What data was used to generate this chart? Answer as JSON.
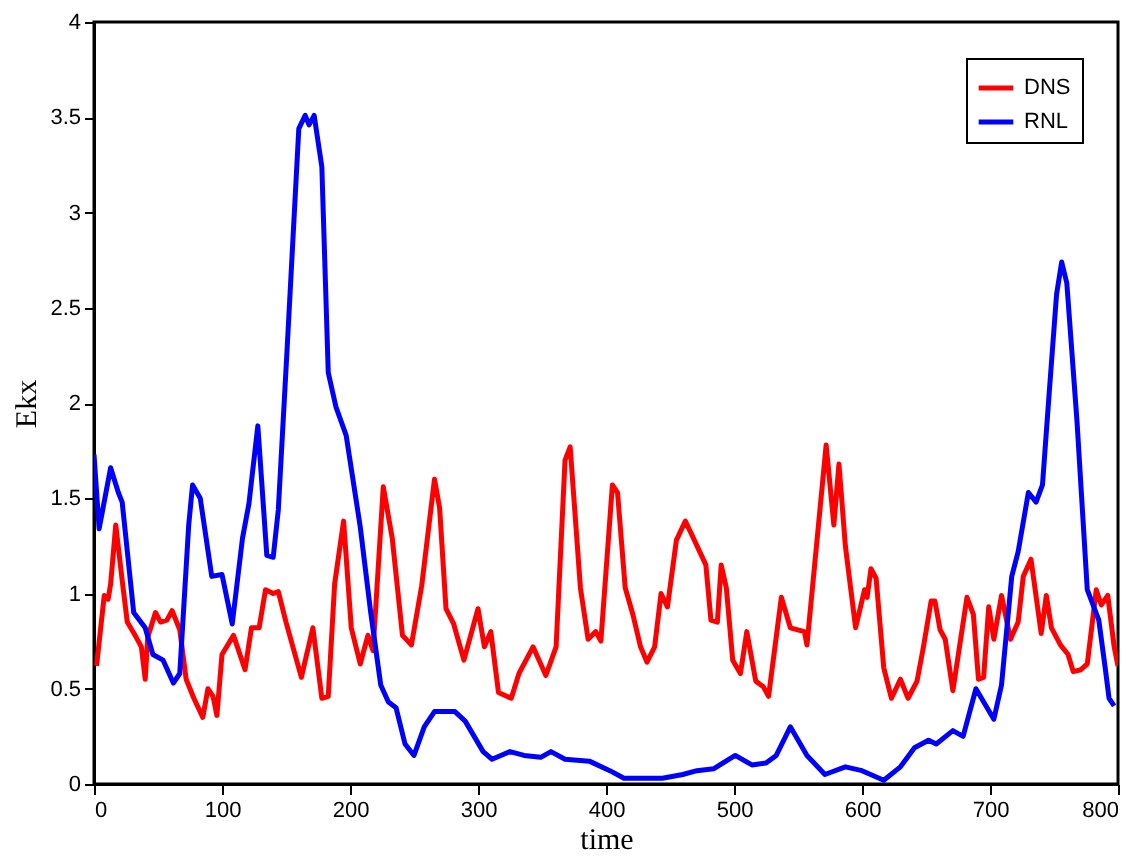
{
  "chart_data": {
    "type": "line",
    "xlabel": "time",
    "ylabel": "Ekx",
    "xlim": [
      0,
      800
    ],
    "ylim": [
      0,
      4
    ],
    "xticks": [
      0,
      100,
      200,
      300,
      400,
      500,
      600,
      700,
      800
    ],
    "yticks": [
      0,
      0.5,
      1,
      1.5,
      2,
      2.5,
      3,
      3.5,
      4
    ],
    "grid": false,
    "legend": "top right",
    "marker": "none",
    "line_style": "solid",
    "series": [
      {
        "name": "DNS",
        "color": "#ff0000",
        "x": [
          2,
          8,
          11,
          13,
          17,
          22,
          26,
          33,
          37,
          40,
          42,
          48,
          52,
          57,
          61,
          67,
          72,
          78,
          85,
          89,
          93,
          96,
          100,
          109,
          118,
          123,
          129,
          134,
          140,
          144,
          150,
          162,
          171,
          178,
          183,
          188,
          195,
          201,
          208,
          214,
          218,
          226,
          233,
          241,
          248,
          256,
          266,
          270,
          275,
          281,
          289,
          300,
          305,
          310,
          316,
          326,
          332,
          343,
          353,
          361,
          368,
          372,
          380,
          386,
          392,
          396,
          405,
          409,
          415,
          421,
          427,
          432,
          438,
          443,
          448,
          455,
          462,
          469,
          478,
          482,
          487,
          490,
          494,
          499,
          505,
          510,
          517,
          523,
          527,
          537,
          544,
          555,
          557,
          563,
          572,
          578,
          582,
          587,
          595,
          602,
          604,
          607,
          611,
          617,
          623,
          630,
          636,
          643,
          648,
          654,
          657,
          661,
          665,
          671,
          682,
          687,
          691,
          695,
          699,
          703,
          709,
          716,
          722,
          726,
          732,
          740,
          744,
          748,
          755,
          761,
          765,
          771,
          776,
          783,
          787,
          792,
          797,
          800
        ],
        "values": [
          0.62,
          0.99,
          0.97,
          1.05,
          1.36,
          1.07,
          0.85,
          0.77,
          0.72,
          0.55,
          0.77,
          0.9,
          0.85,
          0.86,
          0.91,
          0.81,
          0.55,
          0.45,
          0.35,
          0.5,
          0.46,
          0.36,
          0.68,
          0.78,
          0.6,
          0.82,
          0.82,
          1.02,
          1.0,
          1.01,
          0.85,
          0.56,
          0.82,
          0.45,
          0.46,
          1.05,
          1.38,
          0.82,
          0.63,
          0.78,
          0.7,
          1.56,
          1.29,
          0.78,
          0.73,
          1.04,
          1.6,
          1.45,
          0.92,
          0.84,
          0.65,
          0.92,
          0.72,
          0.8,
          0.48,
          0.45,
          0.58,
          0.72,
          0.57,
          0.72,
          1.7,
          1.77,
          1.03,
          0.76,
          0.8,
          0.75,
          1.57,
          1.53,
          1.03,
          0.89,
          0.72,
          0.64,
          0.72,
          1.0,
          0.93,
          1.28,
          1.38,
          1.28,
          1.15,
          0.86,
          0.85,
          1.15,
          1.03,
          0.65,
          0.58,
          0.8,
          0.54,
          0.51,
          0.46,
          0.98,
          0.82,
          0.8,
          0.73,
          1.15,
          1.78,
          1.36,
          1.68,
          1.25,
          0.82,
          1.02,
          0.98,
          1.13,
          1.08,
          0.61,
          0.45,
          0.55,
          0.45,
          0.54,
          0.72,
          0.96,
          0.96,
          0.81,
          0.76,
          0.49,
          0.98,
          0.89,
          0.55,
          0.56,
          0.93,
          0.76,
          0.99,
          0.76,
          0.85,
          1.09,
          1.18,
          0.79,
          0.99,
          0.82,
          0.73,
          0.68,
          0.59,
          0.6,
          0.63,
          1.02,
          0.94,
          0.99,
          0.72,
          0.62
        ]
      },
      {
        "name": "RNL",
        "color": "#0000ff",
        "x": [
          0,
          4,
          13,
          19,
          22,
          31,
          40,
          46,
          54,
          62,
          67,
          74,
          77,
          83,
          92,
          100,
          108,
          116,
          121,
          128,
          135,
          140,
          144,
          151,
          160,
          165,
          168,
          172,
          178,
          183,
          189,
          197,
          208,
          216,
          224,
          230,
          236,
          243,
          250,
          258,
          266,
          275,
          282,
          290,
          304,
          311,
          325,
          336,
          349,
          357,
          368,
          387,
          403,
          414,
          444,
          460,
          471,
          484,
          501,
          514,
          525,
          533,
          544,
          557,
          571,
          587,
          600,
          617,
          630,
          641,
          652,
          658,
          671,
          679,
          689,
          703,
          709,
          717,
          722,
          730,
          736,
          741,
          746,
          752,
          756,
          760,
          768,
          776,
          785,
          790,
          793,
          797
        ],
        "values": [
          1.73,
          1.34,
          1.66,
          1.53,
          1.48,
          0.9,
          0.82,
          0.68,
          0.65,
          0.53,
          0.58,
          1.36,
          1.57,
          1.5,
          1.09,
          1.1,
          0.84,
          1.29,
          1.47,
          1.88,
          1.2,
          1.19,
          1.44,
          2.3,
          3.44,
          3.51,
          3.46,
          3.51,
          3.24,
          2.16,
          1.98,
          1.83,
          1.35,
          0.91,
          0.52,
          0.43,
          0.4,
          0.21,
          0.15,
          0.3,
          0.38,
          0.38,
          0.38,
          0.33,
          0.17,
          0.13,
          0.17,
          0.15,
          0.14,
          0.17,
          0.13,
          0.12,
          0.07,
          0.03,
          0.03,
          0.05,
          0.07,
          0.08,
          0.15,
          0.1,
          0.11,
          0.15,
          0.3,
          0.15,
          0.05,
          0.09,
          0.07,
          0.02,
          0.09,
          0.19,
          0.23,
          0.21,
          0.28,
          0.25,
          0.5,
          0.34,
          0.52,
          1.09,
          1.22,
          1.53,
          1.48,
          1.57,
          2.03,
          2.57,
          2.74,
          2.63,
          1.9,
          1.02,
          0.86,
          0.61,
          0.45,
          0.41
        ]
      }
    ]
  }
}
